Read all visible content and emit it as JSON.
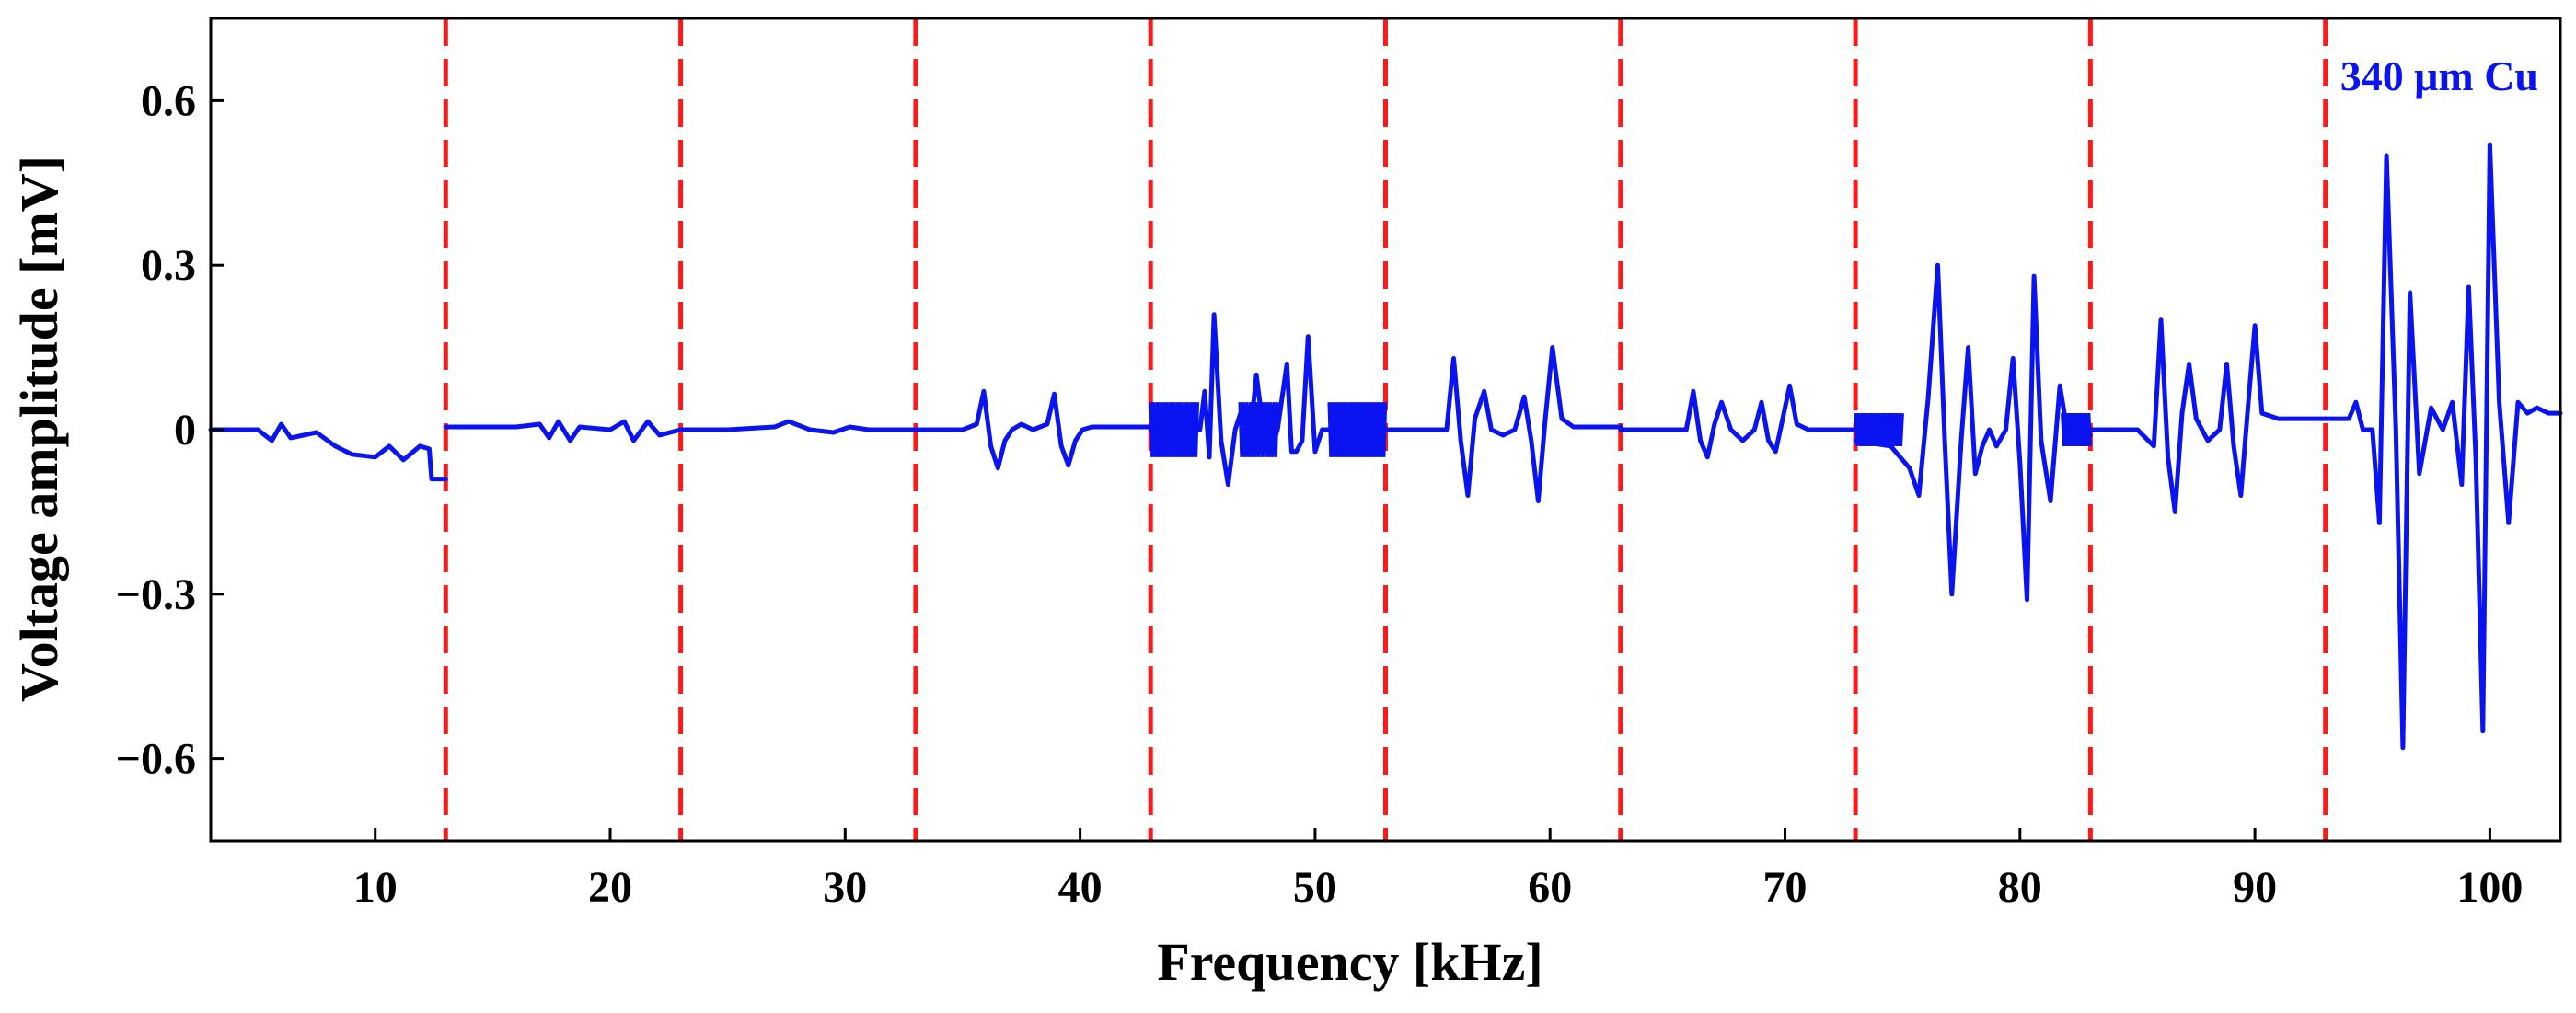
{
  "chart_data": {
    "type": "line",
    "title": "",
    "xlabel": "Frequency [kHz]",
    "ylabel": "Voltage amplitude [mV]",
    "xlim": [
      3,
      103
    ],
    "ylim": [
      -0.75,
      0.75
    ],
    "xticks": [
      10,
      20,
      30,
      40,
      50,
      60,
      70,
      80,
      90,
      100
    ],
    "xtick_labels": [
      "10",
      "20",
      "30",
      "40",
      "50",
      "60",
      "70",
      "80",
      "90",
      "100"
    ],
    "yticks": [
      0.6,
      0.3,
      0,
      -0.3,
      -0.6
    ],
    "ytick_labels": [
      "0.6",
      "0.3",
      "0",
      "−0.3",
      "−0.6"
    ],
    "grid": false,
    "legend": "none",
    "annotation": "340 μm Cu",
    "colors": {
      "series": "#0a14f0",
      "dividers": "#ff1a1a",
      "axes": "#000000"
    },
    "segment_boundaries_khz": [
      13,
      23,
      33,
      43,
      53,
      63,
      73,
      83,
      93
    ],
    "series": [
      {
        "color": "#0a14f0",
        "segments": [
          {
            "x": [
              3,
              5,
              5.6,
              6.0,
              6.4,
              7.5,
              8.3,
              9.0,
              10.0,
              10.6,
              11.2,
              11.9,
              12.3,
              12.4,
              13.0
            ],
            "y": [
              0,
              0,
              -0.02,
              0.01,
              -0.015,
              -0.005,
              -0.03,
              -0.045,
              -0.05,
              -0.03,
              -0.055,
              -0.03,
              -0.035,
              -0.09,
              -0.09
            ]
          },
          {
            "x": [
              13,
              14.5,
              16,
              17,
              17.4,
              17.8,
              18.3,
              18.7,
              20,
              20.6,
              21.0,
              21.6,
              22.1,
              23
            ],
            "y": [
              0.005,
              0.005,
              0.005,
              0.01,
              -0.015,
              0.015,
              -0.02,
              0.005,
              0.0,
              0.015,
              -0.02,
              0.015,
              -0.01,
              0.0
            ]
          },
          {
            "x": [
              23,
              25,
              27,
              27.6,
              28.5,
              29.5,
              30.2,
              31,
              33
            ],
            "y": [
              0.0,
              0.0,
              0.005,
              0.015,
              0.0,
              -0.005,
              0.005,
              0.0,
              0.0
            ]
          },
          {
            "x": [
              33,
              35,
              35.6,
              35.9,
              36.2,
              36.5,
              36.8,
              37.1,
              37.5,
              38.0,
              38.6,
              38.9,
              39.2,
              39.5,
              39.8,
              40.1,
              40.5,
              41,
              43
            ],
            "y": [
              0.0,
              0.0,
              0.01,
              0.07,
              -0.03,
              -0.07,
              -0.02,
              0.0,
              0.01,
              0.0,
              0.01,
              0.065,
              -0.03,
              -0.065,
              -0.02,
              0.0,
              0.005,
              0.005,
              0.005
            ]
          },
          {
            "x": [
              43,
              45.1,
              45.3,
              45.5,
              45.7,
              46.0,
              46.3,
              46.6,
              46.9,
              47.2,
              47.5,
              47.8,
              48.1,
              48.4,
              48.8,
              49.0,
              49.2,
              49.45,
              49.7,
              50.0,
              50.3,
              53
            ],
            "y": [
              0.0,
              0.0,
              0.07,
              -0.05,
              0.21,
              -0.02,
              -0.1,
              0.0,
              0.04,
              -0.03,
              0.1,
              0.0,
              -0.04,
              0.0,
              0.12,
              -0.04,
              -0.04,
              -0.02,
              0.17,
              -0.04,
              0.0,
              0.0
            ],
            "band": {
              "x_ranges": [
                [
                  43.0,
                  45.0
                ],
                [
                  46.8,
                  48.4
                ],
                [
                  50.6,
                  53.0
                ]
              ],
              "amplitude": 0.05
            }
          },
          {
            "x": [
              53,
              55,
              55.6,
              55.9,
              56.2,
              56.5,
              56.8,
              57.2,
              57.5,
              58.0,
              58.5,
              58.9,
              59.2,
              59.5,
              59.8,
              60.1,
              60.5,
              61,
              63
            ],
            "y": [
              0.0,
              0.0,
              0.0,
              0.13,
              -0.02,
              -0.12,
              0.02,
              0.07,
              0.0,
              -0.01,
              0.0,
              0.06,
              -0.02,
              -0.13,
              0.02,
              0.15,
              0.02,
              0.005,
              0.005
            ]
          },
          {
            "x": [
              63,
              65,
              65.8,
              66.1,
              66.4,
              66.7,
              67.0,
              67.3,
              67.7,
              68.2,
              68.7,
              69.0,
              69.3,
              69.6,
              69.9,
              70.2,
              70.5,
              71,
              73
            ],
            "y": [
              0.0,
              0.0,
              0.0,
              0.07,
              -0.02,
              -0.05,
              0.01,
              0.05,
              0.0,
              -0.02,
              0.0,
              0.05,
              -0.02,
              -0.04,
              0.02,
              0.08,
              0.01,
              0.0,
              0.0
            ]
          },
          {
            "x": [
              73,
              74.5,
              75.3,
              75.7,
              76.1,
              76.5,
              76.8,
              77.1,
              77.5,
              77.8,
              78.1,
              78.4,
              78.7,
              79.0,
              79.4,
              79.7,
              80.0,
              80.3,
              80.6,
              80.9,
              81.3,
              81.7,
              82.0,
              82.4,
              83
            ],
            "y": [
              -0.02,
              -0.03,
              -0.07,
              -0.12,
              0.06,
              0.3,
              -0.02,
              -0.3,
              -0.02,
              0.15,
              -0.08,
              -0.03,
              0.0,
              -0.03,
              0.0,
              0.13,
              -0.06,
              -0.31,
              0.28,
              -0.02,
              -0.13,
              0.08,
              0.0,
              0.01,
              -0.01
            ],
            "band": {
              "x_ranges": [
                [
                  73.0,
                  75.0
                ],
                [
                  81.8,
                  83.0
                ]
              ],
              "amplitude": 0.03
            }
          },
          {
            "x": [
              83,
              85,
              85.7,
              86.0,
              86.3,
              86.6,
              86.9,
              87.2,
              87.5,
              88.0,
              88.5,
              88.8,
              89.1,
              89.4,
              89.7,
              90.0,
              90.3,
              91,
              93
            ],
            "y": [
              0.0,
              0.0,
              -0.03,
              0.2,
              -0.05,
              -0.15,
              0.03,
              0.12,
              0.02,
              -0.02,
              0.0,
              0.12,
              -0.03,
              -0.12,
              0.04,
              0.19,
              0.03,
              0.02,
              0.02
            ]
          },
          {
            "x": [
              93,
              94.0,
              94.3,
              94.6,
              95.0,
              95.3,
              95.6,
              96.0,
              96.3,
              96.6,
              97.0,
              97.5,
              98.0,
              98.4,
              98.8,
              99.1,
              99.4,
              99.7,
              100.0,
              100.4,
              100.8,
              101.2,
              101.6,
              102.0,
              102.5,
              103
            ],
            "y": [
              0.02,
              0.02,
              0.05,
              0.0,
              0.0,
              -0.17,
              0.5,
              0.0,
              -0.58,
              0.25,
              -0.08,
              0.04,
              0.0,
              0.05,
              -0.1,
              0.26,
              -0.05,
              -0.55,
              0.52,
              0.05,
              -0.17,
              0.05,
              0.03,
              0.04,
              0.03,
              0.03
            ]
          }
        ]
      }
    ]
  }
}
